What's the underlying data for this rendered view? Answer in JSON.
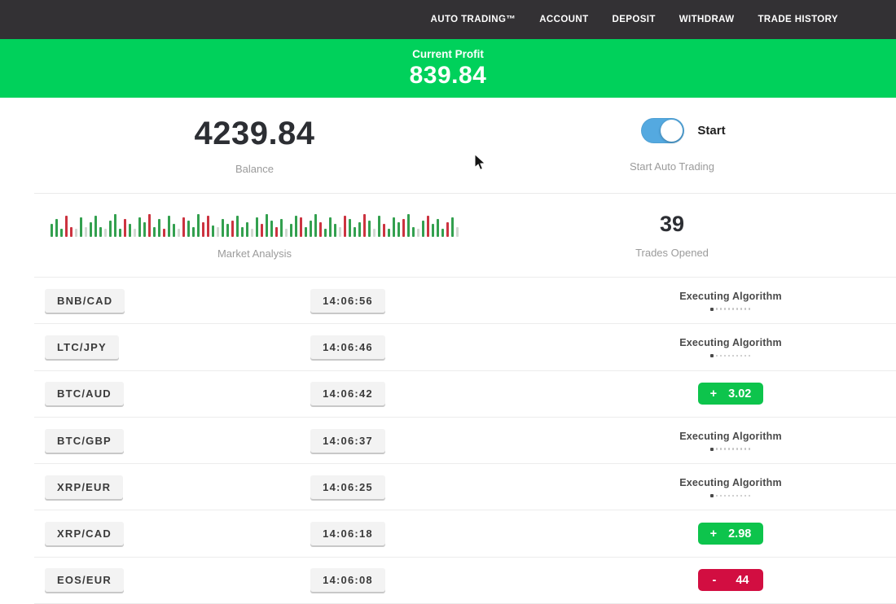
{
  "nav": {
    "items": [
      "AUTO TRADING™",
      "ACCOUNT",
      "DEPOSIT",
      "WITHDRAW",
      "TRADE HISTORY"
    ]
  },
  "profit_banner": {
    "label": "Current Profit",
    "value": "839.84"
  },
  "account": {
    "balance": "4239.84",
    "balance_label": "Balance"
  },
  "auto_trading": {
    "toggle_label": "Start",
    "caption": "Start Auto Trading",
    "toggle_on": true
  },
  "market": {
    "label": "Market Analysis",
    "bars": [
      "g16",
      "g22",
      "g10",
      "r26",
      "r12",
      "p10",
      "g24",
      "p12",
      "g18",
      "g26",
      "g12",
      "p10",
      "g20",
      "g28",
      "g10",
      "r22",
      "g16",
      "p10",
      "g24",
      "g18",
      "r28",
      "g12",
      "g22",
      "r10",
      "g26",
      "g16",
      "p10",
      "r24",
      "g20",
      "g12",
      "g28",
      "r18",
      "r26",
      "g14",
      "p12",
      "g22",
      "g16",
      "r20",
      "g26",
      "g12",
      "g18",
      "p10",
      "g24",
      "r16",
      "g28",
      "g20",
      "r12",
      "g22",
      "p10",
      "g16",
      "g26",
      "r24",
      "g12",
      "g20",
      "g28",
      "r18",
      "g10",
      "g24",
      "g16",
      "p12",
      "r26",
      "g22",
      "g12",
      "g18",
      "r28",
      "g20",
      "p10",
      "g26",
      "r16",
      "g10",
      "g24",
      "g18",
      "r22",
      "g28",
      "g12",
      "p10",
      "g20",
      "r26",
      "g16",
      "g22",
      "g10",
      "r18",
      "g24",
      "p12"
    ]
  },
  "trades_opened": {
    "value": "39",
    "label": "Trades Opened"
  },
  "executing": {
    "label": "Executing Algorithm",
    "dots": 10
  },
  "trades": [
    {
      "pair": "BNB/CAD",
      "time": "14:06:56",
      "status": "executing"
    },
    {
      "pair": "LTC/JPY",
      "time": "14:06:46",
      "status": "executing"
    },
    {
      "pair": "BTC/AUD",
      "time": "14:06:42",
      "status": "win",
      "sign": "+",
      "value": "3.02"
    },
    {
      "pair": "BTC/GBP",
      "time": "14:06:37",
      "status": "executing"
    },
    {
      "pair": "XRP/EUR",
      "time": "14:06:25",
      "status": "executing"
    },
    {
      "pair": "XRP/CAD",
      "time": "14:06:18",
      "status": "win",
      "sign": "+",
      "value": "2.98"
    },
    {
      "pair": "EOS/EUR",
      "time": "14:06:08",
      "status": "loss",
      "sign": "-",
      "value": "44"
    }
  ],
  "colors": {
    "accent": "#00d15b",
    "nav_bg": "#333134",
    "toggle_blue": "#54a9e0",
    "badge_green": "#0dc44c",
    "badge_red": "#d20e41",
    "candle_green": "#33a04f",
    "candle_red": "#cc3340",
    "candle_pale": "#d2d8d2"
  }
}
